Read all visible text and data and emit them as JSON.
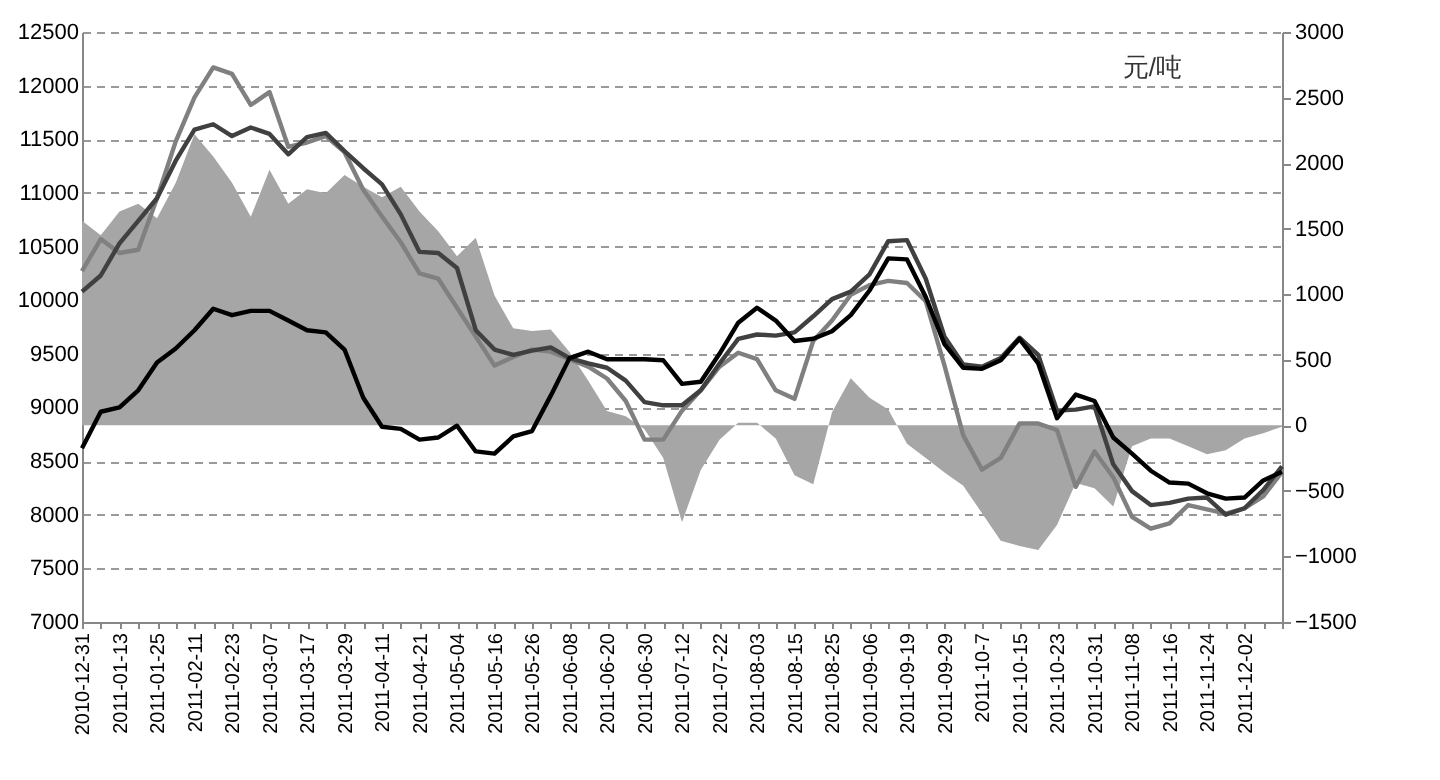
{
  "chart_data": {
    "type": "line",
    "categories": [
      "2010-12-31",
      null,
      "2011-01-13",
      null,
      "2011-01-25",
      null,
      "2011-02-11",
      null,
      "2011-02-23",
      null,
      "2011-03-07",
      null,
      "2011-03-17",
      null,
      "2011-03-29",
      null,
      "2011-04-11",
      null,
      "2011-04-21",
      null,
      "2011-05-04",
      null,
      "2011-05-16",
      null,
      "2011-05-26",
      null,
      "2011-06-08",
      null,
      "2011-06-20",
      null,
      "2011-06-30",
      null,
      "2011-07-12",
      null,
      "2011-07-22",
      null,
      "2011-08-03",
      null,
      "2011-08-15",
      null,
      "2011-08-25",
      null,
      "2011-09-06",
      null,
      "2011-09-19",
      null,
      "2011-09-29",
      null,
      "2011-10-7",
      null,
      "2011-10-15",
      null,
      "2011-10-23",
      null,
      "2011-10-31",
      null,
      "2011-11-08",
      null,
      "2011-11-16",
      null,
      "2011-11-24",
      null,
      "2011-12-02",
      null,
      null
    ],
    "series": [
      {
        "type": "area",
        "axis": "y2",
        "color": "#a6a6a6",
        "values": [
          1560,
          1450,
          1630,
          1690,
          1580,
          1850,
          2220,
          2050,
          1850,
          1590,
          1950,
          1690,
          1800,
          1770,
          1910,
          1820,
          1740,
          1820,
          1630,
          1480,
          1290,
          1430,
          990,
          740,
          720,
          730,
          560,
          340,
          110,
          70,
          -30,
          -250,
          -740,
          -340,
          -110,
          20,
          20,
          -100,
          -380,
          -450,
          100,
          360,
          210,
          120,
          -140,
          -250,
          -360,
          -460,
          -670,
          -880,
          -920,
          -950,
          -760,
          -440,
          -480,
          -620,
          -160,
          -100,
          -100,
          -160,
          -220,
          -190,
          -100,
          -60,
          -10
        ]
      },
      {
        "color": "#808080",
        "values": [
          10270,
          10570,
          10440,
          10470,
          10950,
          11480,
          11890,
          12170,
          12110,
          11820,
          11940,
          11430,
          11470,
          11530,
          11380,
          11030,
          10780,
          10540,
          10250,
          10200,
          9930,
          9660,
          9390,
          9470,
          9540,
          9520,
          9450,
          9380,
          9270,
          9060,
          8700,
          8700,
          8970,
          9160,
          9380,
          9510,
          9450,
          9160,
          9080,
          9620,
          9810,
          10050,
          10140,
          10180,
          10160,
          9990,
          9390,
          8740,
          8420,
          8530,
          8850,
          8850,
          8790,
          8260,
          8590,
          8350,
          7980,
          7870,
          7920,
          8090,
          8050,
          8010,
          8060,
          8170,
          8400
        ]
      },
      {
        "color": "#404040",
        "values": [
          10080,
          10230,
          10530,
          10740,
          10950,
          11300,
          11590,
          11640,
          11530,
          11610,
          11550,
          11360,
          11520,
          11560,
          11390,
          11230,
          11080,
          10800,
          10450,
          10440,
          10300,
          9720,
          9540,
          9490,
          9530,
          9560,
          9460,
          9410,
          9370,
          9250,
          9050,
          9020,
          9020,
          9160,
          9410,
          9640,
          9680,
          9670,
          9700,
          9850,
          10010,
          10080,
          10240,
          10550,
          10560,
          10200,
          9660,
          9400,
          9380,
          9460,
          9650,
          9490,
          8970,
          8980,
          9010,
          8470,
          8220,
          8090,
          8110,
          8150,
          8160,
          8000,
          8060,
          8230,
          8450
        ]
      },
      {
        "color": "#000000",
        "values": [
          8620,
          8960,
          9000,
          9160,
          9420,
          9550,
          9720,
          9920,
          9860,
          9900,
          9900,
          9810,
          9720,
          9700,
          9540,
          9090,
          8820,
          8800,
          8700,
          8720,
          8830,
          8590,
          8570,
          8730,
          8780,
          9110,
          9460,
          9520,
          9450,
          9450,
          9450,
          9440,
          9220,
          9240,
          9500,
          9790,
          9930,
          9810,
          9620,
          9640,
          9710,
          9860,
          10090,
          10390,
          10380,
          10030,
          9590,
          9370,
          9360,
          9440,
          9640,
          9410,
          8900,
          9120,
          9060,
          8720,
          8570,
          8410,
          8300,
          8290,
          8200,
          8150,
          8160,
          8320,
          8400
        ]
      }
    ],
    "ylim": [
      7000,
      12500
    ],
    "yticks": [
      7000,
      7500,
      8000,
      8500,
      9000,
      9500,
      10000,
      10500,
      11000,
      11500,
      12000,
      12500
    ],
    "y2lim": [
      -1500,
      3000
    ],
    "y2ticks": [
      -1500,
      -1000,
      -500,
      0,
      500,
      1000,
      1500,
      2000,
      2500,
      3000
    ],
    "grid": "y",
    "annotations": [
      "元/吨"
    ]
  }
}
